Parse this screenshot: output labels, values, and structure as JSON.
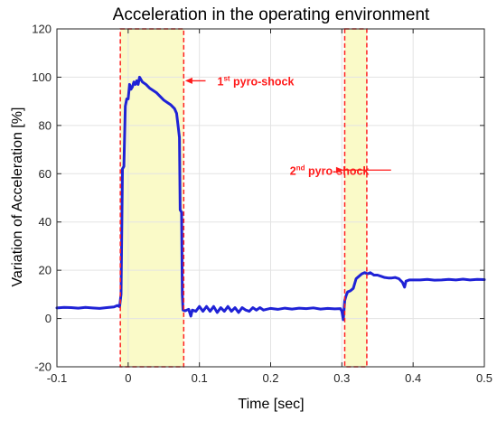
{
  "chart_data": {
    "type": "line",
    "title": "Acceleration in the operating environment",
    "xlabel": "Time [sec]",
    "ylabel": "Variation of Acceleration [%]",
    "xlim": [
      -0.1,
      0.5
    ],
    "ylim": [
      -20,
      120
    ],
    "xticks": [
      -0.1,
      0,
      0.1,
      0.2,
      0.3,
      0.4,
      0.5
    ],
    "xtick_labels": [
      "-0.1",
      "0",
      "0.1",
      "0.2",
      "0.3",
      "0.4",
      "0.5"
    ],
    "yticks": [
      -20,
      0,
      20,
      40,
      60,
      80,
      100,
      120
    ],
    "ytick_labels": [
      "-20",
      "0",
      "20",
      "40",
      "60",
      "80",
      "100",
      "120"
    ],
    "grid": true,
    "line_color": "#1f22d6",
    "highlight_fill": "#fafac8",
    "highlight_border": "#ff2020",
    "annotation_color": "#ff1a1a",
    "regions": [
      {
        "x_start": -0.011,
        "x_end": 0.078
      },
      {
        "x_start": 0.304,
        "x_end": 0.335
      }
    ],
    "annotations": [
      {
        "main": "1",
        "sup": "st",
        "rest": " pyro-shock",
        "arrow_to": [
          0.08,
          98.5
        ],
        "text_at": [
          0.115,
          98.5
        ]
      },
      {
        "main": "2",
        "sup": "nd",
        "rest": " pyro-shock",
        "arrow_to": [
          0.302,
          61.5
        ],
        "text_at": [
          0.227,
          61.5
        ]
      }
    ],
    "series": [
      {
        "points": [
          [
            -0.1,
            4.4
          ],
          [
            -0.09,
            4.6
          ],
          [
            -0.08,
            4.5
          ],
          [
            -0.07,
            4.3
          ],
          [
            -0.06,
            4.6
          ],
          [
            -0.05,
            4.4
          ],
          [
            -0.04,
            4.2
          ],
          [
            -0.03,
            4.5
          ],
          [
            -0.02,
            4.8
          ],
          [
            -0.015,
            5.4
          ],
          [
            -0.012,
            4.9
          ],
          [
            -0.01,
            10.0
          ],
          [
            -0.008,
            62.0
          ],
          [
            -0.006,
            63.0
          ],
          [
            -0.004,
            88.0
          ],
          [
            -0.002,
            91.0
          ],
          [
            0.0,
            91.0
          ],
          [
            0.002,
            97.0
          ],
          [
            0.004,
            95.0
          ],
          [
            0.006,
            96.0
          ],
          [
            0.008,
            98.0
          ],
          [
            0.01,
            97.0
          ],
          [
            0.012,
            98.5
          ],
          [
            0.014,
            97.0
          ],
          [
            0.016,
            100.0
          ],
          [
            0.018,
            99.0
          ],
          [
            0.02,
            98.0
          ],
          [
            0.025,
            97.0
          ],
          [
            0.03,
            95.5
          ],
          [
            0.035,
            94.5
          ],
          [
            0.04,
            93.5
          ],
          [
            0.045,
            92.0
          ],
          [
            0.05,
            90.5
          ],
          [
            0.055,
            89.5
          ],
          [
            0.06,
            88.5
          ],
          [
            0.065,
            87.0
          ],
          [
            0.068,
            85.0
          ],
          [
            0.07,
            80.0
          ],
          [
            0.072,
            75.0
          ],
          [
            0.073,
            45.0
          ],
          [
            0.075,
            44.0
          ],
          [
            0.076,
            10.0
          ],
          [
            0.077,
            3.5
          ],
          [
            0.08,
            3.2
          ],
          [
            0.085,
            3.8
          ],
          [
            0.088,
            1.0
          ],
          [
            0.09,
            3.5
          ],
          [
            0.095,
            3.0
          ],
          [
            0.1,
            5.0
          ],
          [
            0.105,
            3.0
          ],
          [
            0.11,
            5.0
          ],
          [
            0.115,
            3.0
          ],
          [
            0.12,
            5.0
          ],
          [
            0.125,
            2.5
          ],
          [
            0.13,
            4.5
          ],
          [
            0.135,
            3.0
          ],
          [
            0.14,
            5.0
          ],
          [
            0.145,
            3.0
          ],
          [
            0.15,
            4.5
          ],
          [
            0.155,
            2.5
          ],
          [
            0.16,
            4.5
          ],
          [
            0.165,
            3.5
          ],
          [
            0.17,
            3.0
          ],
          [
            0.175,
            4.5
          ],
          [
            0.18,
            3.5
          ],
          [
            0.185,
            4.5
          ],
          [
            0.19,
            3.5
          ],
          [
            0.2,
            4.2
          ],
          [
            0.21,
            3.8
          ],
          [
            0.22,
            4.3
          ],
          [
            0.23,
            3.9
          ],
          [
            0.24,
            4.3
          ],
          [
            0.25,
            4.1
          ],
          [
            0.26,
            4.4
          ],
          [
            0.27,
            3.9
          ],
          [
            0.28,
            4.2
          ],
          [
            0.29,
            4.0
          ],
          [
            0.298,
            4.1
          ],
          [
            0.3,
            3.0
          ],
          [
            0.302,
            -0.5
          ],
          [
            0.304,
            7.5
          ],
          [
            0.306,
            9.5
          ],
          [
            0.308,
            11.0
          ],
          [
            0.312,
            11.5
          ],
          [
            0.316,
            12.5
          ],
          [
            0.32,
            16.5
          ],
          [
            0.324,
            17.5
          ],
          [
            0.328,
            18.5
          ],
          [
            0.332,
            19.0
          ],
          [
            0.336,
            18.5
          ],
          [
            0.34,
            19.0
          ],
          [
            0.345,
            18.0
          ],
          [
            0.35,
            18.0
          ],
          [
            0.355,
            17.5
          ],
          [
            0.36,
            17.0
          ],
          [
            0.365,
            16.8
          ],
          [
            0.37,
            16.8
          ],
          [
            0.375,
            17.0
          ],
          [
            0.38,
            16.5
          ],
          [
            0.385,
            15.0
          ],
          [
            0.388,
            13.0
          ],
          [
            0.39,
            15.5
          ],
          [
            0.395,
            16.0
          ],
          [
            0.4,
            16.0
          ],
          [
            0.41,
            16.0
          ],
          [
            0.42,
            16.2
          ],
          [
            0.43,
            15.9
          ],
          [
            0.44,
            16.0
          ],
          [
            0.45,
            16.2
          ],
          [
            0.46,
            16.0
          ],
          [
            0.47,
            16.3
          ],
          [
            0.48,
            16.0
          ],
          [
            0.49,
            16.2
          ],
          [
            0.5,
            16.1
          ]
        ]
      }
    ]
  }
}
